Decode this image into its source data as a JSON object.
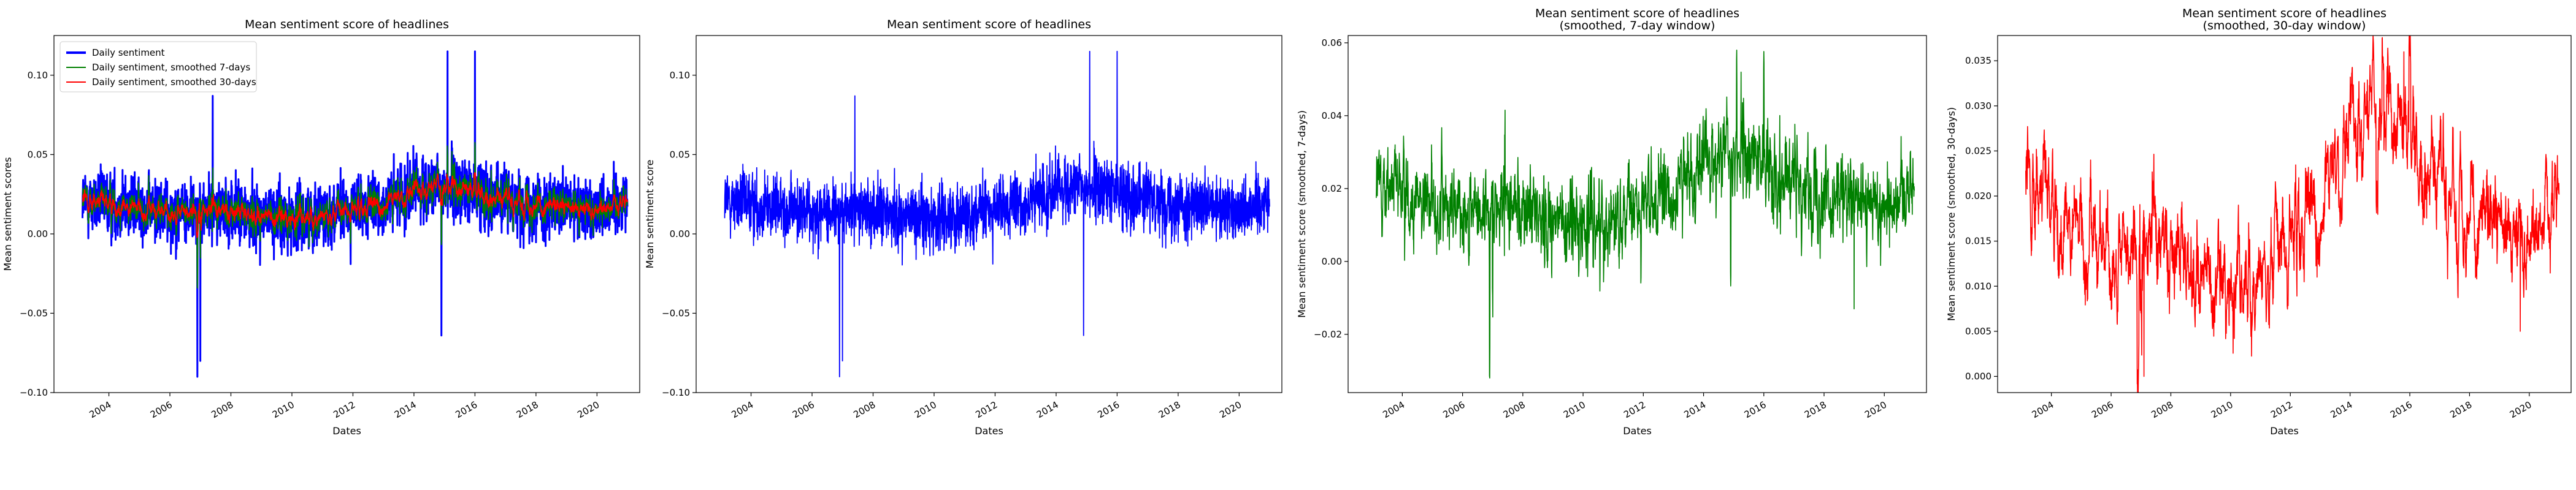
{
  "chart_data": [
    {
      "type": "line",
      "title": "Mean sentiment score of headlines",
      "xlabel": "Dates",
      "ylabel": "Mean sentiment scores",
      "xlim": [
        2002.2,
        2021.4
      ],
      "ylim": [
        -0.1,
        0.125
      ],
      "x_ticks": [
        "2004",
        "2006",
        "2008",
        "2010",
        "2012",
        "2014",
        "2016",
        "2018",
        "2020"
      ],
      "y_ticks": [
        "−0.10",
        "−0.05",
        "0.00",
        "0.05",
        "0.10"
      ],
      "legend": {
        "position": "top-left",
        "entries": [
          "Daily sentiment",
          "Daily sentiment, smoothed 7-days",
          "Daily sentiment, smoothed 30-days"
        ]
      },
      "series": [
        {
          "name": "Daily sentiment",
          "color": "#0000ff",
          "kind": "daily",
          "x_start": "2003-02-19",
          "x_end": "2020-12-31",
          "trend": [
            [
              2003,
              0.021
            ],
            [
              2004,
              0.019
            ],
            [
              2005,
              0.016
            ],
            [
              2006,
              0.014
            ],
            [
              2007,
              0.015
            ],
            [
              2008,
              0.014
            ],
            [
              2009,
              0.011
            ],
            [
              2010,
              0.01
            ],
            [
              2011,
              0.012
            ],
            [
              2012,
              0.015
            ],
            [
              2013,
              0.018
            ],
            [
              2014,
              0.028
            ],
            [
              2015,
              0.029
            ],
            [
              2016,
              0.027
            ],
            [
              2017,
              0.022
            ],
            [
              2018,
              0.019
            ],
            [
              2019,
              0.015
            ],
            [
              2020,
              0.016
            ],
            [
              2021,
              0.022
            ]
          ],
          "peaks": [
            [
              2006.9,
              -0.09
            ],
            [
              2007.0,
              -0.08
            ],
            [
              2014.9,
              -0.064
            ],
            [
              2015.1,
              0.115
            ],
            [
              2016.0,
              0.115
            ],
            [
              2007.4,
              0.087
            ]
          ]
        },
        {
          "name": "Daily sentiment, smoothed 7-days",
          "color": "#008000",
          "kind": "smooth7"
        },
        {
          "name": "Daily sentiment, smoothed 30-days",
          "color": "#ff0000",
          "kind": "smooth30"
        }
      ]
    },
    {
      "type": "line",
      "title": "Mean sentiment score of headlines",
      "xlabel": "Dates",
      "ylabel": "Mean sentiment score",
      "xlim": [
        2002.2,
        2021.4
      ],
      "ylim": [
        -0.1,
        0.125
      ],
      "x_ticks": [
        "2004",
        "2006",
        "2008",
        "2010",
        "2012",
        "2014",
        "2016",
        "2018",
        "2020"
      ],
      "y_ticks": [
        "−0.10",
        "−0.05",
        "0.00",
        "0.05",
        "0.10"
      ],
      "series": [
        {
          "color": "#0000ff",
          "kind": "daily"
        }
      ]
    },
    {
      "type": "line",
      "title": "Mean sentiment score of headlines",
      "subtitle": "(smoothed, 7-day window)",
      "xlabel": "Dates",
      "ylabel": "Mean sentiment score (smoothed, 7-days)",
      "xlim": [
        2002.2,
        2021.4
      ],
      "ylim": [
        -0.036,
        0.062
      ],
      "x_ticks": [
        "2004",
        "2006",
        "2008",
        "2010",
        "2012",
        "2014",
        "2016",
        "2018",
        "2020"
      ],
      "y_ticks": [
        "−0.02",
        "0.00",
        "0.02",
        "0.04",
        "0.06"
      ],
      "series": [
        {
          "color": "#008000",
          "kind": "smooth7",
          "peaks": [
            [
              2006.9,
              -0.032
            ],
            [
              2015.1,
              0.058
            ],
            [
              2019.0,
              -0.013
            ]
          ]
        }
      ]
    },
    {
      "type": "line",
      "title": "Mean sentiment score of headlines",
      "subtitle": "(smoothed, 30-day window)",
      "xlabel": "Dates",
      "ylabel": "Mean sentiment score (smoothed, 30-days)",
      "xlim": [
        2002.2,
        2021.4
      ],
      "ylim": [
        -0.0018,
        0.0378
      ],
      "x_ticks": [
        "2004",
        "2006",
        "2008",
        "2010",
        "2012",
        "2014",
        "2016",
        "2018",
        "2020"
      ],
      "y_ticks": [
        "0.000",
        "0.005",
        "0.010",
        "0.015",
        "0.020",
        "0.025",
        "0.030",
        "0.035"
      ],
      "series": [
        {
          "color": "#ff0000",
          "kind": "smooth30",
          "peaks": [
            [
              2007.1,
              0.0
            ],
            [
              2015.8,
              0.036
            ],
            [
              2019.7,
              0.005
            ]
          ]
        }
      ]
    }
  ]
}
